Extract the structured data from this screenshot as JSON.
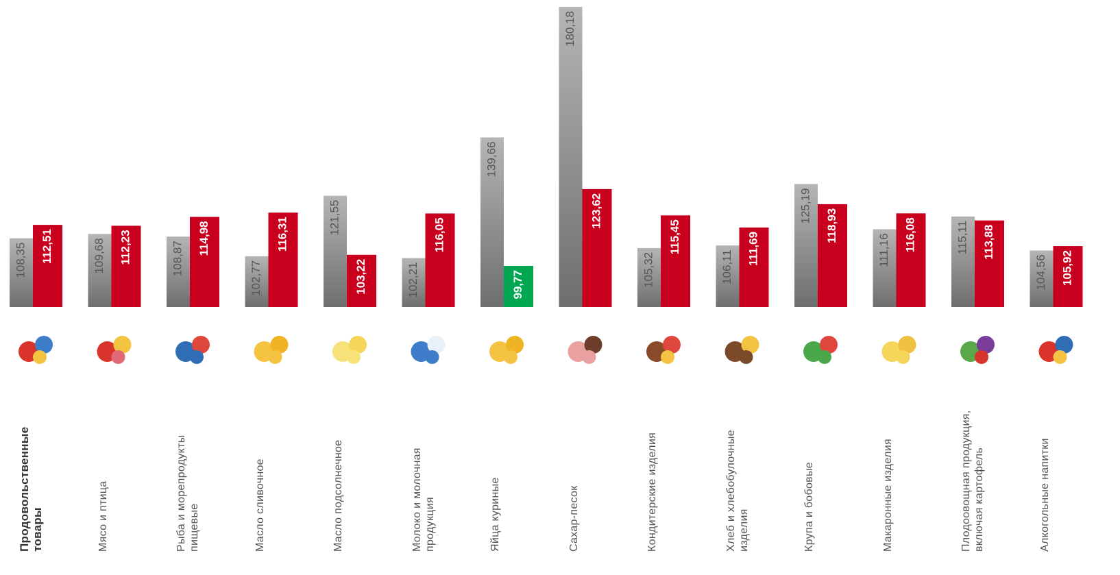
{
  "chart_data": {
    "type": "bar",
    "categories": [
      "Продовольственные товары",
      "Мясо и птица",
      "Рыба и морепродукты пищевые",
      "Масло сливочное",
      "Масло подсолнечное",
      "Молоко и молочная продукция",
      "Яйца куриные",
      "Сахар-песок",
      "Кондитерские изделия",
      "Хлеб и хлебобулочные изделия",
      "Крупа и бобовые",
      "Макаронные изделия",
      "Плодоовощная продукция, включая картофель",
      "Алкогольные напитки"
    ],
    "series": [
      {
        "color": "#8f8f8f",
        "values": [
          108.35,
          109.68,
          108.87,
          102.77,
          121.55,
          102.21,
          139.66,
          180.18,
          105.32,
          106.11,
          125.19,
          111.16,
          115.11,
          104.56
        ],
        "value_labels": [
          "108,35",
          "109,68",
          "108,87",
          "102,77",
          "121,55",
          "102,21",
          "139,66",
          "180,18",
          "105,32",
          "106,11",
          "125,19",
          "111,16",
          "115,11",
          "104,56"
        ]
      },
      {
        "color": "#c8001e",
        "colors": [
          "#c8001e",
          "#c8001e",
          "#c8001e",
          "#c8001e",
          "#c8001e",
          "#c8001e",
          "#00a650",
          "#c8001e",
          "#c8001e",
          "#c8001e",
          "#c8001e",
          "#c8001e",
          "#c8001e",
          "#c8001e"
        ],
        "values": [
          112.51,
          112.23,
          114.98,
          116.31,
          103.22,
          116.05,
          99.77,
          123.62,
          115.45,
          111.69,
          118.93,
          116.08,
          113.88,
          105.92
        ],
        "value_labels": [
          "112,51",
          "112,23",
          "114,98",
          "116,31",
          "103,22",
          "116,05",
          "99,77",
          "123,62",
          "115,45",
          "111,69",
          "118,93",
          "116,08",
          "113,88",
          "105,92"
        ]
      }
    ],
    "ylim": [
      87,
      182
    ]
  }
}
